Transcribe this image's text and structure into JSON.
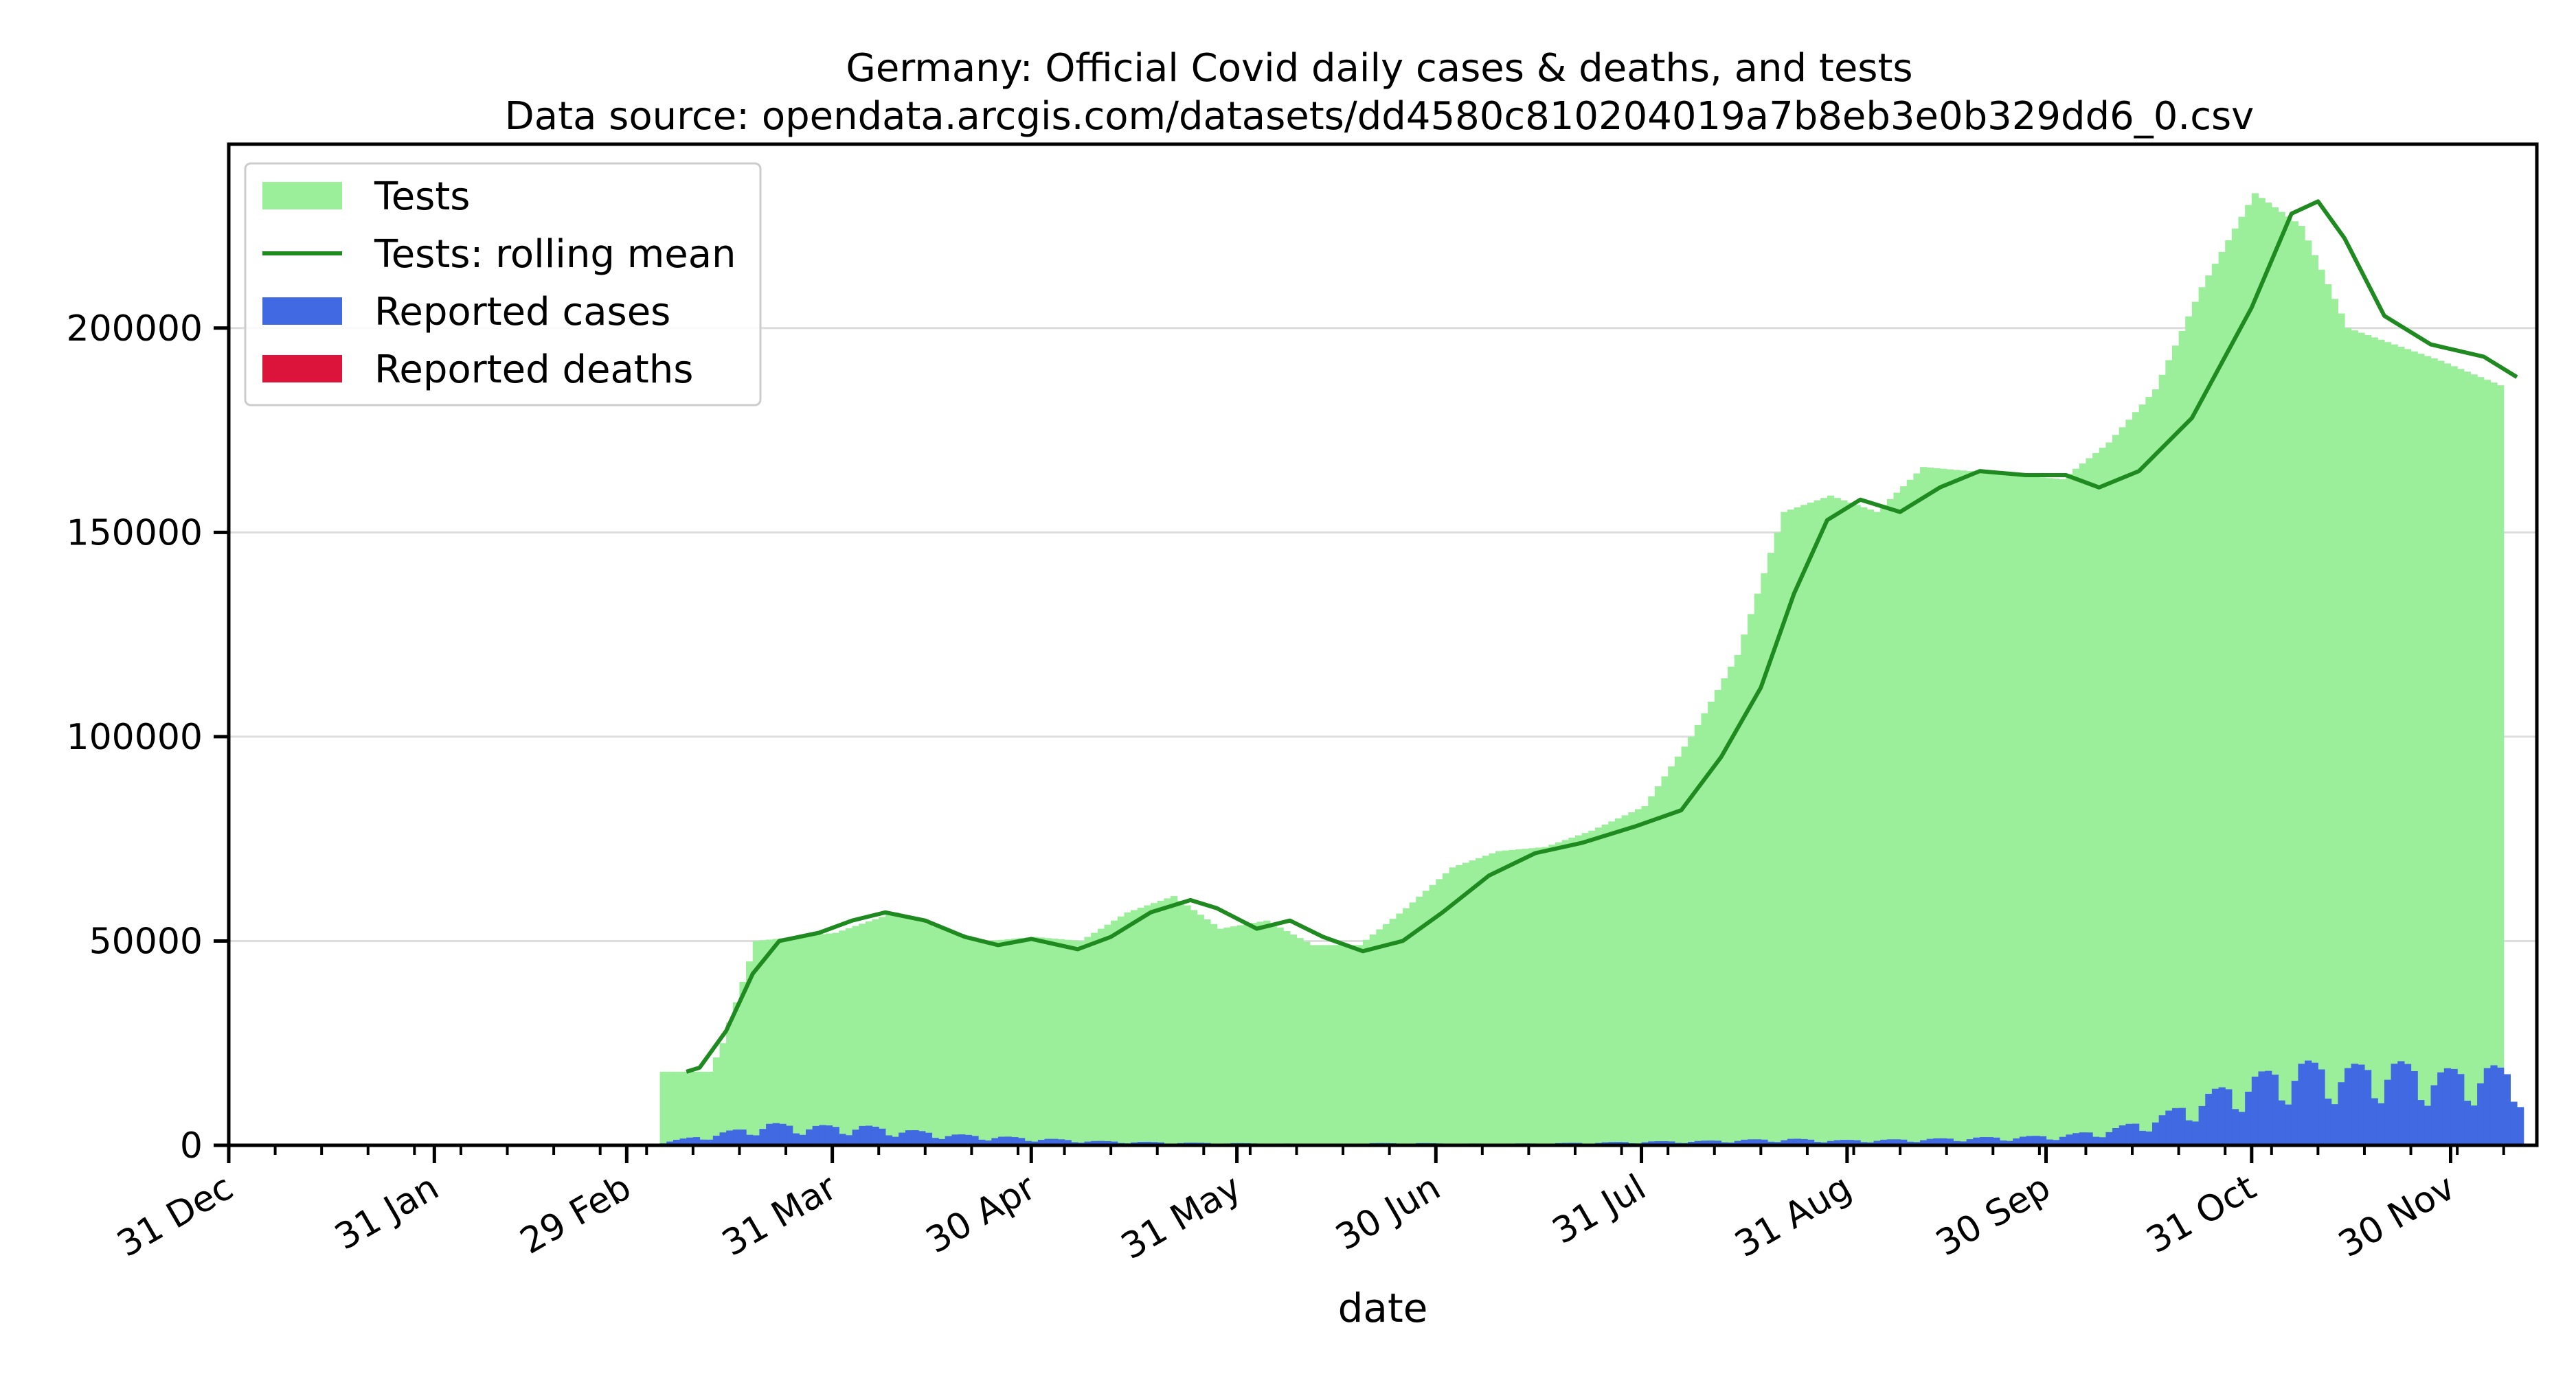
{
  "chart_data": {
    "type": "bar",
    "title": "Germany: Official Covid daily cases & deaths, and tests",
    "subtitle": "Data source: opendata.arcgis.com/datasets/dd4580c810204019a7b8eb3e0b329dd6_0.csv",
    "xlabel": "date",
    "ylabel": "",
    "x_range": [
      "2019-12-31",
      "2020-12-13"
    ],
    "ylim": [
      0,
      245000
    ],
    "x_ticks": [
      {
        "date": "2019-12-31",
        "label": "31 Dec"
      },
      {
        "date": "2020-01-31",
        "label": "31 Jan"
      },
      {
        "date": "2020-02-29",
        "label": "29 Feb"
      },
      {
        "date": "2020-03-31",
        "label": "31 Mar"
      },
      {
        "date": "2020-04-30",
        "label": "30 Apr"
      },
      {
        "date": "2020-05-31",
        "label": "31 May"
      },
      {
        "date": "2020-06-30",
        "label": "30 Jun"
      },
      {
        "date": "2020-07-31",
        "label": "31 Jul"
      },
      {
        "date": "2020-08-31",
        "label": "31 Aug"
      },
      {
        "date": "2020-09-30",
        "label": "30 Sep"
      },
      {
        "date": "2020-10-31",
        "label": "31 Oct"
      },
      {
        "date": "2020-11-30",
        "label": "30 Nov"
      }
    ],
    "y_ticks": [
      {
        "value": 0,
        "label": "0"
      },
      {
        "value": 50000,
        "label": "50000"
      },
      {
        "value": 100000,
        "label": "100000"
      },
      {
        "value": 150000,
        "label": "150000"
      },
      {
        "value": 200000,
        "label": "200000"
      }
    ],
    "grid": "horizontal",
    "legend_position": "top-left",
    "series": [
      {
        "name": "Tests",
        "kind": "bar",
        "color": "#9bee9a",
        "points": [
          [
            "2020-03-05",
            18000
          ],
          [
            "2020-03-12",
            18000
          ],
          [
            "2020-03-14",
            25000
          ],
          [
            "2020-03-16",
            35000
          ],
          [
            "2020-03-19",
            50000
          ],
          [
            "2020-03-31",
            52000
          ],
          [
            "2020-04-09",
            57000
          ],
          [
            "2020-04-16",
            53000
          ],
          [
            "2020-04-23",
            50000
          ],
          [
            "2020-04-30",
            51000
          ],
          [
            "2020-05-07",
            50000
          ],
          [
            "2020-05-14",
            57000
          ],
          [
            "2020-05-21",
            61000
          ],
          [
            "2020-05-28",
            53000
          ],
          [
            "2020-06-04",
            55000
          ],
          [
            "2020-06-11",
            49000
          ],
          [
            "2020-06-18",
            49000
          ],
          [
            "2020-06-25",
            58000
          ],
          [
            "2020-07-02",
            68000
          ],
          [
            "2020-07-09",
            72000
          ],
          [
            "2020-07-16",
            73000
          ],
          [
            "2020-07-23",
            77000
          ],
          [
            "2020-07-31",
            83000
          ],
          [
            "2020-08-07",
            100000
          ],
          [
            "2020-08-14",
            120000
          ],
          [
            "2020-08-21",
            155000
          ],
          [
            "2020-08-28",
            159000
          ],
          [
            "2020-09-04",
            155000
          ],
          [
            "2020-09-11",
            166000
          ],
          [
            "2020-09-18",
            165000
          ],
          [
            "2020-09-25",
            164000
          ],
          [
            "2020-10-02",
            163000
          ],
          [
            "2020-10-09",
            172000
          ],
          [
            "2020-10-16",
            185000
          ],
          [
            "2020-10-23",
            210000
          ],
          [
            "2020-10-31",
            233000
          ],
          [
            "2020-11-07",
            225000
          ],
          [
            "2020-11-14",
            200000
          ],
          [
            "2020-11-21",
            196000
          ],
          [
            "2020-11-28",
            192000
          ],
          [
            "2020-12-07",
            186000
          ]
        ]
      },
      {
        "name": "Tests: rolling mean",
        "kind": "line",
        "color": "#1f8a1f",
        "points": [
          [
            "2020-03-09",
            18000
          ],
          [
            "2020-03-11",
            19000
          ],
          [
            "2020-03-15",
            28000
          ],
          [
            "2020-03-19",
            42000
          ],
          [
            "2020-03-23",
            50000
          ],
          [
            "2020-03-29",
            52000
          ],
          [
            "2020-04-03",
            55000
          ],
          [
            "2020-04-08",
            57000
          ],
          [
            "2020-04-14",
            55000
          ],
          [
            "2020-04-20",
            51000
          ],
          [
            "2020-04-25",
            49000
          ],
          [
            "2020-04-30",
            50500
          ],
          [
            "2020-05-07",
            48000
          ],
          [
            "2020-05-12",
            51000
          ],
          [
            "2020-05-18",
            57000
          ],
          [
            "2020-05-24",
            60000
          ],
          [
            "2020-05-28",
            58000
          ],
          [
            "2020-06-03",
            53000
          ],
          [
            "2020-06-08",
            55000
          ],
          [
            "2020-06-13",
            51000
          ],
          [
            "2020-06-19",
            47500
          ],
          [
            "2020-06-25",
            50000
          ],
          [
            "2020-07-01",
            57000
          ],
          [
            "2020-07-08",
            66000
          ],
          [
            "2020-07-15",
            71500
          ],
          [
            "2020-07-22",
            74000
          ],
          [
            "2020-07-30",
            78000
          ],
          [
            "2020-08-06",
            82000
          ],
          [
            "2020-08-12",
            95000
          ],
          [
            "2020-08-18",
            112000
          ],
          [
            "2020-08-23",
            135000
          ],
          [
            "2020-08-28",
            153000
          ],
          [
            "2020-09-02",
            158000
          ],
          [
            "2020-09-08",
            155000
          ],
          [
            "2020-09-14",
            161000
          ],
          [
            "2020-09-20",
            165000
          ],
          [
            "2020-09-27",
            164000
          ],
          [
            "2020-10-03",
            164000
          ],
          [
            "2020-10-08",
            161000
          ],
          [
            "2020-10-14",
            165000
          ],
          [
            "2020-10-22",
            178000
          ],
          [
            "2020-10-31",
            205000
          ],
          [
            "2020-11-06",
            228000
          ],
          [
            "2020-11-10",
            231000
          ],
          [
            "2020-11-14",
            222000
          ],
          [
            "2020-11-20",
            203000
          ],
          [
            "2020-11-27",
            196000
          ],
          [
            "2020-12-05",
            193000
          ],
          [
            "2020-12-10",
            188000
          ]
        ]
      },
      {
        "name": "Reported cases",
        "kind": "bar",
        "color": "#4169e1",
        "points": [
          [
            "2020-03-01",
            0
          ],
          [
            "2020-03-08",
            1500
          ],
          [
            "2020-03-14",
            3000
          ],
          [
            "2020-03-21",
            5000
          ],
          [
            "2020-03-28",
            4500
          ],
          [
            "2020-04-04",
            4500
          ],
          [
            "2020-04-11",
            3500
          ],
          [
            "2020-04-18",
            2500
          ],
          [
            "2020-04-25",
            2000
          ],
          [
            "2020-05-02",
            1500
          ],
          [
            "2020-05-09",
            1000
          ],
          [
            "2020-05-16",
            800
          ],
          [
            "2020-05-23",
            600
          ],
          [
            "2020-05-30",
            500
          ],
          [
            "2020-06-06",
            400
          ],
          [
            "2020-06-13",
            350
          ],
          [
            "2020-06-20",
            500
          ],
          [
            "2020-06-27",
            500
          ],
          [
            "2020-07-04",
            400
          ],
          [
            "2020-07-11",
            400
          ],
          [
            "2020-07-18",
            500
          ],
          [
            "2020-07-25",
            700
          ],
          [
            "2020-08-01",
            900
          ],
          [
            "2020-08-08",
            1000
          ],
          [
            "2020-08-15",
            1300
          ],
          [
            "2020-08-22",
            1500
          ],
          [
            "2020-08-29",
            1200
          ],
          [
            "2020-09-05",
            1300
          ],
          [
            "2020-09-12",
            1500
          ],
          [
            "2020-09-19",
            1800
          ],
          [
            "2020-09-26",
            2000
          ],
          [
            "2020-10-03",
            2500
          ],
          [
            "2020-10-10",
            4000
          ],
          [
            "2020-10-17",
            7000
          ],
          [
            "2020-10-24",
            12000
          ],
          [
            "2020-10-31",
            16000
          ],
          [
            "2020-11-07",
            19000
          ],
          [
            "2020-11-14",
            18000
          ],
          [
            "2020-11-21",
            19000
          ],
          [
            "2020-11-28",
            17000
          ],
          [
            "2020-12-05",
            18000
          ],
          [
            "2020-12-10",
            17000
          ]
        ]
      },
      {
        "name": "Reported deaths",
        "kind": "bar",
        "color": "#dc143c",
        "points": []
      }
    ]
  }
}
